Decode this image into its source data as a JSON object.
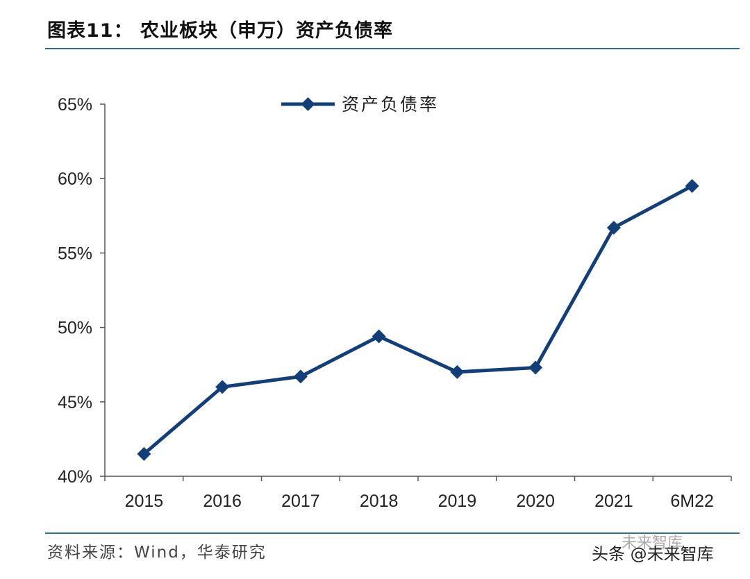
{
  "header": {
    "title": "图表11： 农业板块（申万）资产负债率"
  },
  "footer": {
    "source": "资料来源：Wind，华泰研究",
    "watermark": "头条 @未来智库",
    "watermark_faint": "未来智库"
  },
  "chart_data": {
    "type": "line",
    "title": "",
    "xlabel": "",
    "ylabel": "",
    "categories": [
      "2015",
      "2016",
      "2017",
      "2018",
      "2019",
      "2020",
      "2021",
      "6M22"
    ],
    "series": [
      {
        "name": "资产负债率",
        "values": [
          41.5,
          46.0,
          46.7,
          49.4,
          47.0,
          47.3,
          56.7,
          59.5
        ],
        "color": "#123f7a",
        "marker": "diamond"
      }
    ],
    "ylim": [
      40,
      65
    ],
    "yticks": [
      40,
      45,
      50,
      55,
      60,
      65
    ],
    "ytick_labels": [
      "40%",
      "45%",
      "50%",
      "55%",
      "60%",
      "65%"
    ],
    "grid": false,
    "legend_position": "top-center"
  }
}
